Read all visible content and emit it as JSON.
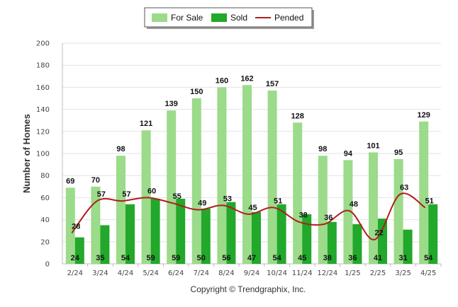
{
  "chart_data": {
    "type": "bar",
    "categories": [
      "2/24",
      "3/24",
      "4/24",
      "5/24",
      "6/24",
      "7/24",
      "8/24",
      "9/24",
      "10/24",
      "11/24",
      "12/24",
      "1/25",
      "2/25",
      "3/25",
      "4/25"
    ],
    "series": [
      {
        "name": "For Sale",
        "type": "bar",
        "color": "#9bdb8a",
        "values": [
          69,
          70,
          98,
          121,
          139,
          150,
          160,
          162,
          157,
          128,
          98,
          94,
          101,
          95,
          129
        ]
      },
      {
        "name": "Sold",
        "type": "bar",
        "color": "#22a82a",
        "values": [
          24,
          35,
          54,
          59,
          59,
          50,
          56,
          47,
          54,
          45,
          38,
          36,
          41,
          31,
          54
        ]
      },
      {
        "name": "Pended",
        "type": "line",
        "color": "#b01e1e",
        "values": [
          28,
          57,
          57,
          60,
          55,
          49,
          53,
          45,
          51,
          38,
          36,
          48,
          22,
          63,
          51
        ]
      }
    ],
    "ylabel": "Number of Homes",
    "xlabel": "",
    "ylim": [
      0,
      200
    ],
    "yticks": [
      0,
      20,
      40,
      60,
      80,
      100,
      120,
      140,
      160,
      180,
      200
    ],
    "grid": true,
    "legend_position": "top-center"
  },
  "footer": {
    "copyright": "Copyright © Trendgraphix, Inc."
  }
}
